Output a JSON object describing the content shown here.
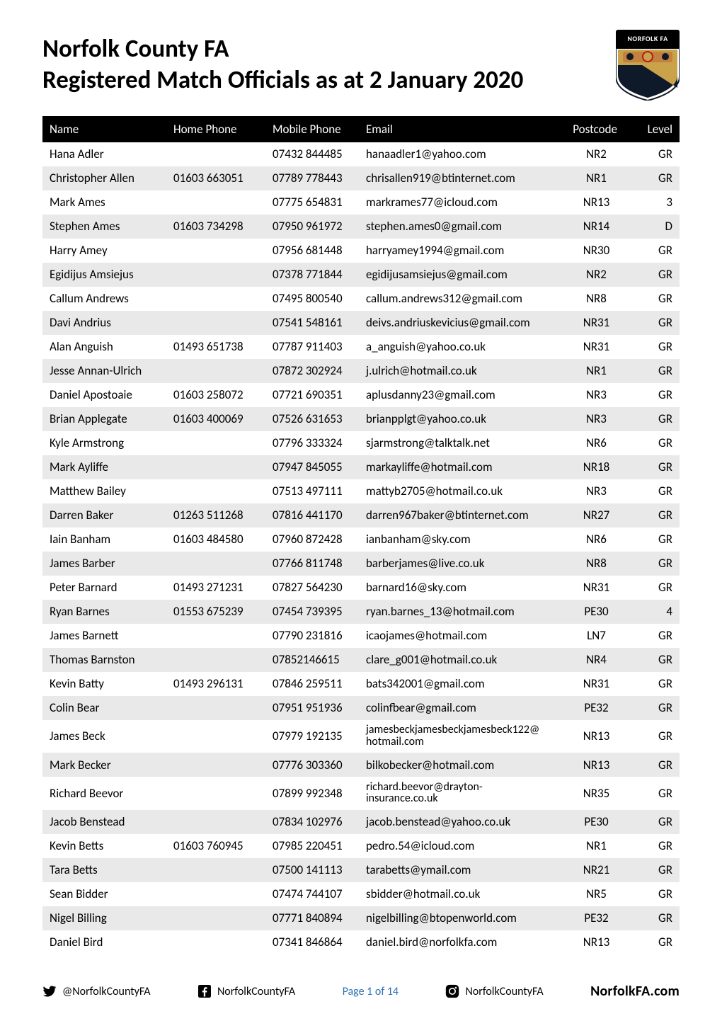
{
  "header": {
    "title_line1": "Norfolk County FA",
    "title_line2": "Registered Match Officials as at 2 January 2020",
    "logo_banner": "NORFOLK FA"
  },
  "columns": {
    "name": "Name",
    "home": "Home Phone",
    "mobile": "Mobile Phone",
    "email": "Email",
    "postcode": "Postcode",
    "level": "Level"
  },
  "rows": [
    {
      "name": "Hana Adler",
      "home": "",
      "mobile": "07432 844485",
      "email": "hanaadler1@yahoo.com",
      "postcode": "NR2",
      "level": "GR"
    },
    {
      "name": "Christopher Allen",
      "home": "01603 663051",
      "mobile": "07789 778443",
      "email": "chrisallen919@btinternet.com",
      "postcode": "NR1",
      "level": "GR"
    },
    {
      "name": "Mark Ames",
      "home": "",
      "mobile": "07775 654831",
      "email": "markrames77@icloud.com",
      "postcode": "NR13",
      "level": "3"
    },
    {
      "name": "Stephen Ames",
      "home": "01603 734298",
      "mobile": "07950 961972",
      "email": "stephen.ames0@gmail.com",
      "postcode": "NR14",
      "level": "D"
    },
    {
      "name": "Harry Amey",
      "home": "",
      "mobile": "07956 681448",
      "email": "harryamey1994@gmail.com",
      "postcode": "NR30",
      "level": "GR"
    },
    {
      "name": "Egidijus Amsiejus",
      "home": "",
      "mobile": "07378 771844",
      "email": "egidijusamsiejus@gmail.com",
      "postcode": "NR2",
      "level": "GR"
    },
    {
      "name": "Callum Andrews",
      "home": "",
      "mobile": "07495 800540",
      "email": "callum.andrews312@gmail.com",
      "postcode": "NR8",
      "level": "GR"
    },
    {
      "name": "Davi Andrius",
      "home": "",
      "mobile": "07541 548161",
      "email": "deivs.andriuskevicius@gmail.com",
      "postcode": "NR31",
      "level": "GR"
    },
    {
      "name": "Alan Anguish",
      "home": "01493 651738",
      "mobile": "07787 911403",
      "email": "a_anguish@yahoo.co.uk",
      "postcode": "NR31",
      "level": "GR"
    },
    {
      "name": "Jesse Annan-Ulrich",
      "home": "",
      "mobile": "07872 302924",
      "email": "j.ulrich@hotmail.co.uk",
      "postcode": "NR1",
      "level": "GR"
    },
    {
      "name": "Daniel Apostoaie",
      "home": "01603 258072",
      "mobile": "07721 690351",
      "email": "aplusdanny23@gmail.com",
      "postcode": "NR3",
      "level": "GR"
    },
    {
      "name": "Brian Applegate",
      "home": "01603 400069",
      "mobile": "07526 631653",
      "email": "brianpplgt@yahoo.co.uk",
      "postcode": "NR3",
      "level": "GR"
    },
    {
      "name": "Kyle Armstrong",
      "home": "",
      "mobile": "07796 333324",
      "email": "sjarmstrong@talktalk.net",
      "postcode": "NR6",
      "level": "GR"
    },
    {
      "name": "Mark Ayliffe",
      "home": "",
      "mobile": "07947 845055",
      "email": "markayliffe@hotmail.com",
      "postcode": "NR18",
      "level": "GR"
    },
    {
      "name": "Matthew Bailey",
      "home": "",
      "mobile": "07513 497111",
      "email": "mattyb2705@hotmail.co.uk",
      "postcode": "NR3",
      "level": "GR"
    },
    {
      "name": "Darren Baker",
      "home": "01263 511268",
      "mobile": "07816 441170",
      "email": "darren967baker@btinternet.com",
      "postcode": "NR27",
      "level": "GR"
    },
    {
      "name": "Iain Banham",
      "home": "01603 484580",
      "mobile": "07960 872428",
      "email": "ianbanham@sky.com",
      "postcode": "NR6",
      "level": "GR"
    },
    {
      "name": "James Barber",
      "home": "",
      "mobile": "07766 811748",
      "email": "barberjames@live.co.uk",
      "postcode": "NR8",
      "level": "GR"
    },
    {
      "name": "Peter Barnard",
      "home": "01493 271231",
      "mobile": "07827 564230",
      "email": "barnard16@sky.com",
      "postcode": "NR31",
      "level": "GR"
    },
    {
      "name": "Ryan Barnes",
      "home": "01553 675239",
      "mobile": "07454 739395",
      "email": "ryan.barnes_13@hotmail.com",
      "postcode": "PE30",
      "level": "4"
    },
    {
      "name": "James Barnett",
      "home": "",
      "mobile": "07790 231816",
      "email": "icaojames@hotmail.com",
      "postcode": "LN7",
      "level": "GR"
    },
    {
      "name": "Thomas Barnston",
      "home": "",
      "mobile": "07852146615",
      "email": "clare_g001@hotmail.co.uk",
      "postcode": "NR4",
      "level": "GR"
    },
    {
      "name": "Kevin Batty",
      "home": "01493 296131",
      "mobile": "07846 259511",
      "email": "bats342001@gmail.com",
      "postcode": "NR31",
      "level": "GR"
    },
    {
      "name": "Colin Bear",
      "home": "",
      "mobile": "07951 951936",
      "email": "colinfbear@gmail.com",
      "postcode": "PE32",
      "level": "GR"
    },
    {
      "name": "James Beck",
      "home": "",
      "mobile": "07979 192135",
      "email": "jamesbeckjamesbeckjamesbeck122@hotmail.com",
      "email2": true,
      "postcode": "NR13",
      "level": "GR"
    },
    {
      "name": "Mark Becker",
      "home": "",
      "mobile": "07776 303360",
      "email": "bilkobecker@hotmail.com",
      "postcode": "NR13",
      "level": "GR"
    },
    {
      "name": "Richard Beevor",
      "home": "",
      "mobile": "07899 992348",
      "email": "richard.beevor@drayton-insurance.co.uk",
      "email2": true,
      "postcode": "NR35",
      "level": "GR"
    },
    {
      "name": "Jacob Benstead",
      "home": "",
      "mobile": "07834 102976",
      "email": "jacob.benstead@yahoo.co.uk",
      "postcode": "PE30",
      "level": "GR"
    },
    {
      "name": "Kevin Betts",
      "home": "01603 760945",
      "mobile": "07985 220451",
      "email": "pedro.54@icloud.com",
      "postcode": "NR1",
      "level": "GR"
    },
    {
      "name": "Tara Betts",
      "home": "",
      "mobile": "07500 141113",
      "email": "tarabetts@ymail.com",
      "postcode": "NR21",
      "level": "GR"
    },
    {
      "name": "Sean Bidder",
      "home": "",
      "mobile": "07474 744107",
      "email": "sbidder@hotmail.co.uk",
      "postcode": "NR5",
      "level": "GR"
    },
    {
      "name": "Nigel Billing",
      "home": "",
      "mobile": "07771 840894",
      "email": "nigelbilling@btopenworld.com",
      "postcode": "PE32",
      "level": "GR"
    },
    {
      "name": "Daniel Bird",
      "home": "",
      "mobile": "07341 846864",
      "email": "daniel.bird@norfolkfa.com",
      "postcode": "NR13",
      "level": "GR"
    }
  ],
  "footer": {
    "twitter": "@NorfolkCountyFA",
    "facebook": "NorfolkCountyFA",
    "page": "Page 1 of 14",
    "instagram": "NorfolkCountyFA",
    "brand": "NorfolkFA.com"
  },
  "style": {
    "page_bg": "#ffffff",
    "text_color": "#000000",
    "header_bg": "#000000",
    "header_fg": "#ffffff",
    "row_odd_bg": "#ffffff",
    "row_even_bg": "#e9e9e9",
    "page_label_color": "#2e74b5",
    "title_fontsize": 35,
    "table_fontsize": 17,
    "footer_fontsize": 16,
    "logo_colors": {
      "banner": "#000000",
      "gold": "#caa24a",
      "dark": "#0e1a2a",
      "red": "#b01c1c"
    }
  }
}
